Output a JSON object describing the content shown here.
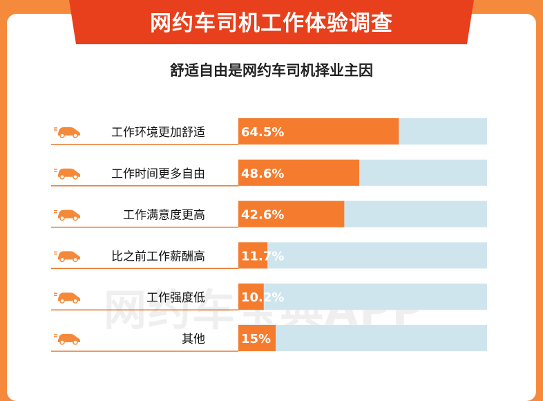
{
  "header": {
    "title": "网约车司机工作体验调查",
    "subtitle": "舒适自由是网约车司机择业主因"
  },
  "watermark": "网约车宝典APP",
  "colors": {
    "background": "#f58a3c",
    "banner": "#e8401c",
    "bar_fill": "#f57c2e",
    "bar_track": "#cfe5ee",
    "row_rule": "#e8762a",
    "car_icon": "#f5893a"
  },
  "chart_data": {
    "type": "bar",
    "orientation": "horizontal",
    "categories": [
      "工作环境更加舒适",
      "工作时间更多自由",
      "工作满意度更高",
      "比之前工作薪酬高",
      "工作强度低",
      "其他"
    ],
    "values": [
      64.5,
      48.6,
      42.6,
      11.7,
      10.2,
      15
    ],
    "value_labels": [
      "64.5%",
      "48.6%",
      "42.6%",
      "11.7%",
      "10.2%",
      "15%"
    ],
    "xlim": [
      0,
      100
    ],
    "category_icon": "car-icon"
  }
}
